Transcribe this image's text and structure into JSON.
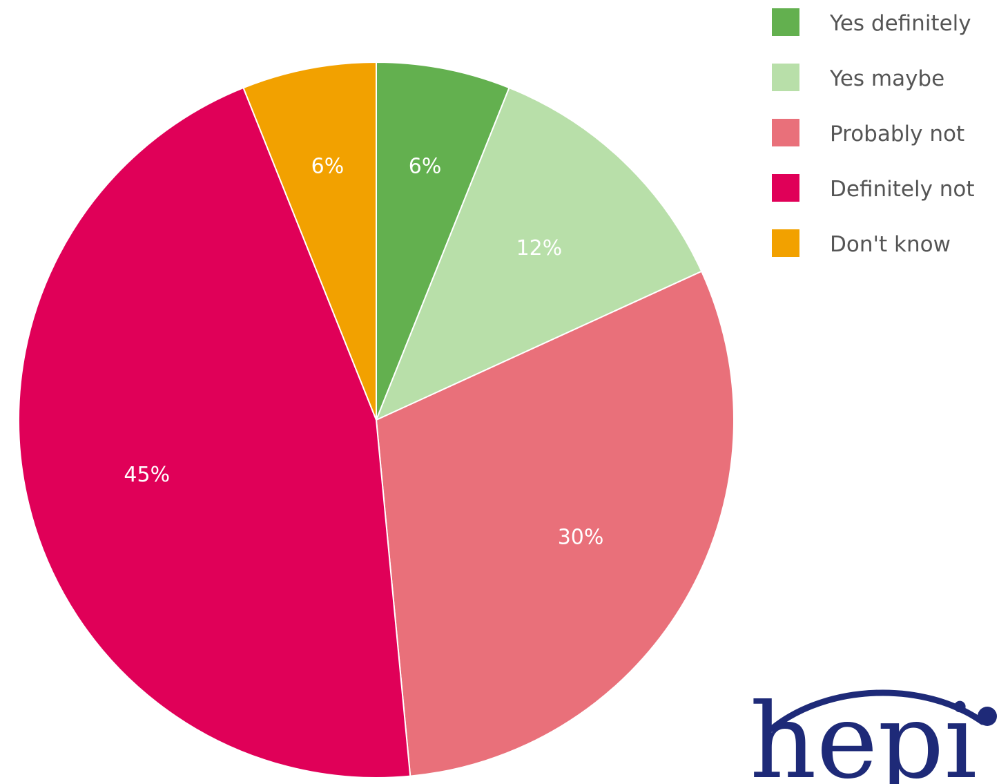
{
  "chart_data": {
    "type": "pie",
    "slices": [
      {
        "label": "Yes definitely",
        "value": 6,
        "data_label": "6%",
        "color": "#63b04f"
      },
      {
        "label": "Yes maybe",
        "value": 12,
        "data_label": "12%",
        "color": "#b8dfa9"
      },
      {
        "label": "Probably not",
        "value": 30,
        "data_label": "30%",
        "color": "#e9707a"
      },
      {
        "label": "Definitely not",
        "value": 45,
        "data_label": "45%",
        "color": "#e00058"
      },
      {
        "label": "Don't know",
        "value": 6,
        "data_label": "6%",
        "color": "#f2a100"
      }
    ],
    "legend_position": "top-right"
  },
  "logo": {
    "text": "hepi",
    "color": "#1e2a78"
  }
}
